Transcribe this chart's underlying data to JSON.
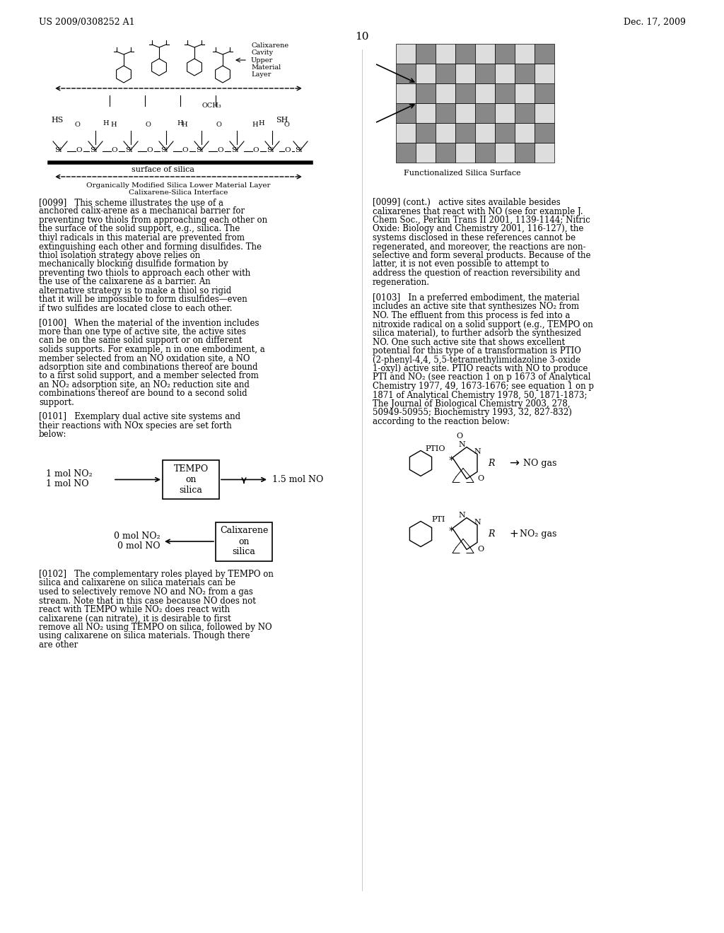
{
  "page_number": "10",
  "patent_number": "US 2009/0308252 A1",
  "patent_date": "Dec. 17, 2009",
  "background_color": "#ffffff",
  "text_color": "#000000",
  "paragraphs": {
    "p099": "[0099]  This scheme illustrates the use of a anchored calix-arene as a mechanical barrier for preventing two thiols from approaching each other on the surface of the solid support, e.g., silica. The thiyl radicals in this material are prevented from extinguishing each other and forming disulfides. The thiol isolation strategy above relies on mechanically blocking disulfide formation by preventing two thiols to approach each other with the use of the calixarene as a barrier. An alternative strategy is to make a thiol so rigid that it will be impossible to form disulfides—even if two sulfides are located close to each other.",
    "p100": "[0100]  When the material of the invention includes more than one type of active site, the active sites can be on the same solid support or on different solids supports. For example, n in one embodiment, a member selected from an NO oxidation site, a NO adsorption site and combinations thereof are bound to a first solid support, and a member selected from an NO₂ adsorption site, an NO₂ reduction site and combinations thereof are bound to a second solid support.",
    "p101": "[0101]  Exemplary dual active site systems and their reactions with NOx species are set forth below:",
    "p102": "[0102]  The complementary roles played by TEMPO on silica and calixarene on silica materials can be used to selectively remove NO and NO₂ from a gas stream. Note that in this case because NO does not react with TEMPO while NO₂ does react with calixarene (can nitrate), it is desirable to first remove all NO₂ using TEMPO on silica, followed by NO using calixarene on silica materials. Though there are other",
    "p103_right": "[0103]  In a preferred embodiment, the material includes an active site that synthesizes NO₂ from NO. The effluent from this process is fed into a nitroxide radical on a solid support (e.g., TEMPO on silica material), to further adsorb the synthesized NO. One such active site that shows excellent potential for this type of a transformation is PTIO (2-phenyl-4,4,5,5-tetramethylimidazoline 3-oxide 1-oxyl) active site. PTIO reacts with NO to produce PTI and NO₂ (see reaction 1 on p 1673 of Analytical Chemistry 1977, 49, 1673-1676; see equation 1 on p 1871 of Analytical Chemistry 1978, 50, 1871-1873; The Journal of Biological Chemistry 2003, 278, 50949-50955; Biochemistry 1993, 32, 827-832) according to the reaction below:",
    "p099_right": "active sites available besides calixarenes that react with NO (see for example J. Chem Soc., Perkin Trans II 2001, 1139-1144; Nitric Oxide: Biology and Chemistry 2001, 116-127), the systems disclosed in these references cannot be regenerated, and moreover, the reactions are non-selective and form several products. Because of the latter, it is not even possible to attempt to address the question of reaction reversibility and regeneration."
  },
  "diagram_labels": {
    "calixarene_label": "Calixarene\nCavity\nUpper\nMaterial\nLayer",
    "surface_label": "surface of silica",
    "lower_layer_label": "Organically Modified Silica Lower Material Layer\nCalixarene-Silica Interface",
    "functionalized_label": "Functionalized Silica Surface"
  },
  "flow_diagram": {
    "input1_text": "1 mol NO₂\n1 mol NO",
    "box1_text": "TEMPO\non\nsilica",
    "output1_text": "1.5 mol NO",
    "box2_text": "Calixarene\non\nsilica",
    "output2_text": "0 mol NO₂\n0 mol NO"
  },
  "ptio_label": "PTIO",
  "pti_label": "PTI",
  "no_gas_label": "NO gas",
  "no2_gas_label": "+ NO₂ gas"
}
